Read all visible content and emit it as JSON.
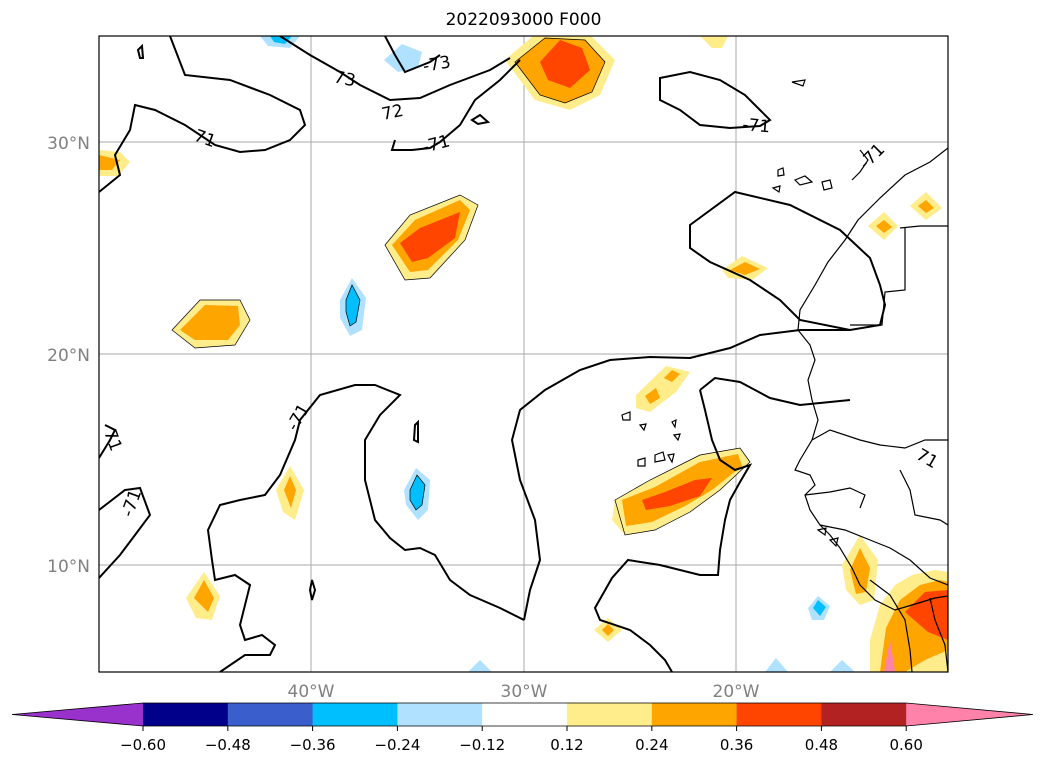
{
  "title": "2022093000 F000",
  "map": {
    "lon_range": [
      -50,
      -10
    ],
    "lat_range": [
      5,
      35
    ],
    "lat_ticks": [
      {
        "value": 30,
        "label": "30°N"
      },
      {
        "value": 20,
        "label": "20°N"
      },
      {
        "value": 10,
        "label": "10°N"
      }
    ],
    "lon_ticks": [
      {
        "value": -40,
        "label": "40°W"
      },
      {
        "value": -30,
        "label": "30°W"
      },
      {
        "value": -20,
        "label": "20°W"
      }
    ],
    "gridline_color": "#aaaaaa",
    "contour_labels": [
      "73",
      "-73",
      "72",
      "71",
      "-71",
      "-71",
      "-71",
      "-71",
      "-71",
      "71",
      "71"
    ]
  },
  "colorbar": {
    "ticks": [
      "−0.60",
      "−0.48",
      "−0.36",
      "−0.24",
      "−0.12",
      "0.12",
      "0.24",
      "0.36",
      "0.48",
      "0.60"
    ],
    "colors": [
      "#9932cc",
      "#00008b",
      "#3a5fcd",
      "#00bfff",
      "#b0e2ff",
      "#ffffff",
      "#ffec8b",
      "#ffa500",
      "#ff4500",
      "#b22222",
      "#ff82ab"
    ]
  }
}
